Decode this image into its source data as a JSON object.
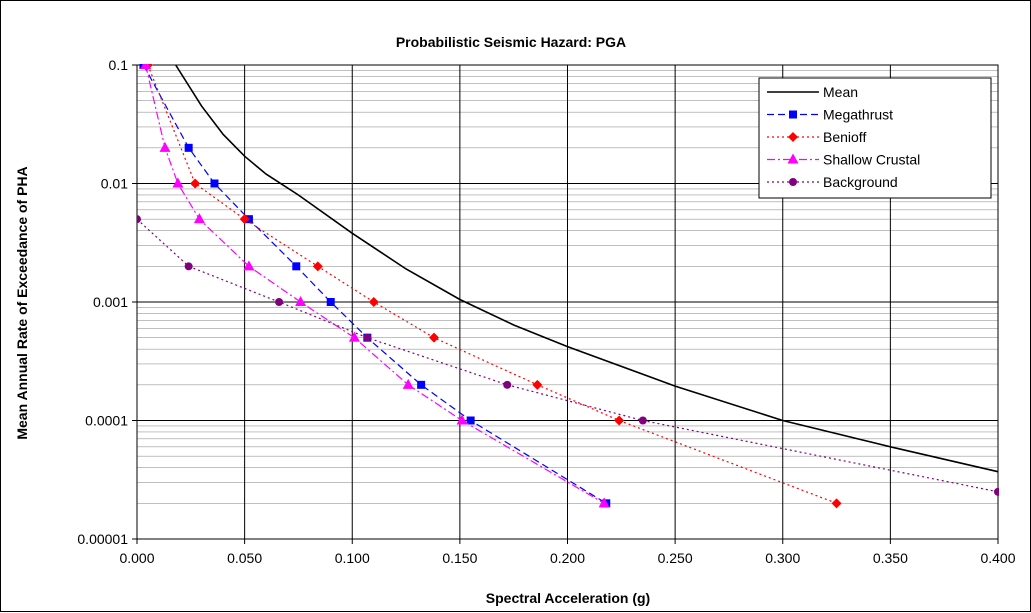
{
  "chart_data": {
    "type": "line",
    "title": "Probabilistic Seismic Hazard: PGA",
    "xlabel": "Spectral Acceleration (g)",
    "ylabel": "Mean Annual Rate of Exceedance of PHA",
    "x_scale": "linear",
    "y_scale": "log",
    "xlim": [
      0,
      0.4
    ],
    "ylim": [
      1e-05,
      0.1
    ],
    "x_ticks": [
      "0.000",
      "0.050",
      "0.100",
      "0.150",
      "0.200",
      "0.250",
      "0.300",
      "0.350",
      "0.400"
    ],
    "y_ticks": [
      "0.00001",
      "0.0001",
      "0.001",
      "0.01",
      "0.1"
    ],
    "grid": true,
    "legend_position": "top-right",
    "series": [
      {
        "name": "Mean",
        "color": "#000000",
        "line": "solid",
        "marker": "none",
        "points": [
          [
            0.018,
            0.1
          ],
          [
            0.03,
            0.045
          ],
          [
            0.04,
            0.026
          ],
          [
            0.05,
            0.017
          ],
          [
            0.06,
            0.012
          ],
          [
            0.075,
            0.008
          ],
          [
            0.1,
            0.0038
          ],
          [
            0.125,
            0.0019
          ],
          [
            0.15,
            0.00105
          ],
          [
            0.175,
            0.00064
          ],
          [
            0.2,
            0.00042
          ],
          [
            0.25,
            0.000195
          ],
          [
            0.3,
            0.0001
          ],
          [
            0.35,
            6e-05
          ],
          [
            0.4,
            3.7e-05
          ]
        ]
      },
      {
        "name": "Megathrust",
        "color": "#0000FF",
        "line": "dashed",
        "marker": "square",
        "points": [
          [
            0.003,
            0.1
          ],
          [
            0.024,
            0.02
          ],
          [
            0.036,
            0.01
          ],
          [
            0.052,
            0.005
          ],
          [
            0.074,
            0.002
          ],
          [
            0.09,
            0.001
          ],
          [
            0.107,
            0.0005
          ],
          [
            0.132,
            0.0002
          ],
          [
            0.155,
            0.0001
          ],
          [
            0.218,
            2e-05
          ]
        ]
      },
      {
        "name": "Benioff",
        "color": "#FF0000",
        "line": "dotted",
        "marker": "diamond",
        "points": [
          [
            0.005,
            0.1
          ],
          [
            0.027,
            0.01
          ],
          [
            0.05,
            0.005
          ],
          [
            0.084,
            0.002
          ],
          [
            0.11,
            0.001
          ],
          [
            0.138,
            0.0005
          ],
          [
            0.186,
            0.0002
          ],
          [
            0.224,
            0.0001
          ],
          [
            0.325,
            2e-05
          ]
        ]
      },
      {
        "name": "Shallow Crustal",
        "color": "#FF00FF",
        "line": "dashdot",
        "marker": "triangle",
        "points": [
          [
            0.004,
            0.1
          ],
          [
            0.013,
            0.02
          ],
          [
            0.019,
            0.01
          ],
          [
            0.029,
            0.005
          ],
          [
            0.052,
            0.002
          ],
          [
            0.076,
            0.001
          ],
          [
            0.101,
            0.0005
          ],
          [
            0.126,
            0.0002
          ],
          [
            0.151,
            0.0001
          ],
          [
            0.217,
            2e-05
          ]
        ]
      },
      {
        "name": "Background",
        "color": "#800080",
        "line": "dotted",
        "marker": "circle",
        "points": [
          [
            0.0,
            0.005
          ],
          [
            0.024,
            0.002
          ],
          [
            0.066,
            0.001
          ],
          [
            0.107,
            0.0005
          ],
          [
            0.172,
            0.0002
          ],
          [
            0.235,
            0.0001
          ],
          [
            0.4,
            2.5e-05
          ]
        ]
      }
    ]
  }
}
